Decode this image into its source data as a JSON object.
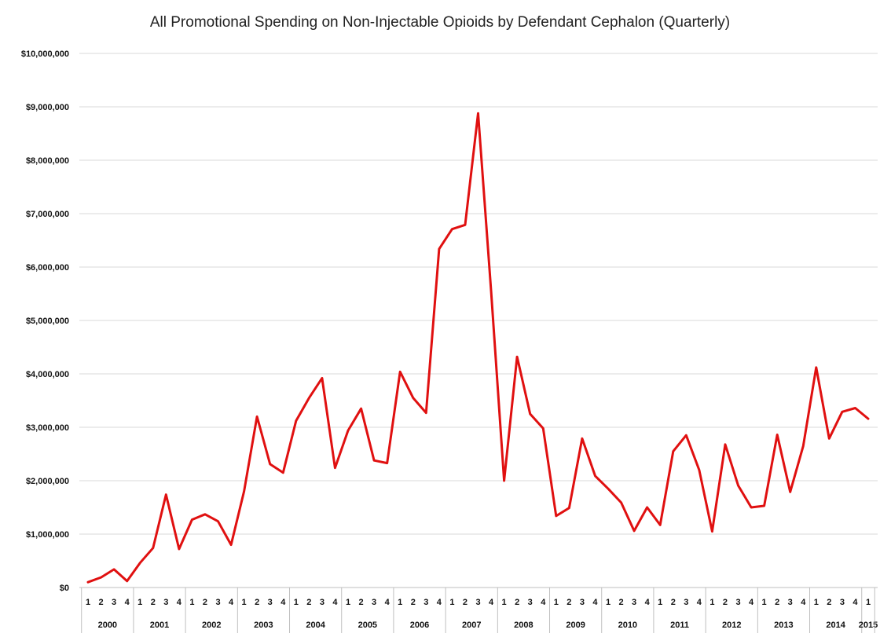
{
  "chart_data": {
    "type": "line",
    "title": "All Promotional Spending on Non-Injectable Opioids by Defendant Cephalon (Quarterly)",
    "xlabel": "",
    "ylabel": "",
    "ylim": [
      0,
      10000000
    ],
    "y_ticks": [
      0,
      1000000,
      2000000,
      3000000,
      4000000,
      5000000,
      6000000,
      7000000,
      8000000,
      9000000,
      10000000
    ],
    "y_tick_labels": [
      "$0",
      "$1,000,000",
      "$2,000,000",
      "$3,000,000",
      "$4,000,000",
      "$5,000,000",
      "$6,000,000",
      "$7,000,000",
      "$8,000,000",
      "$9,000,000",
      "$10,000,000"
    ],
    "grid": true,
    "legend": "none",
    "line_color": "#e01010",
    "years": [
      "2000",
      "2001",
      "2002",
      "2003",
      "2004",
      "2005",
      "2006",
      "2007",
      "2008",
      "2009",
      "2010",
      "2011",
      "2012",
      "2013",
      "2014",
      "2015"
    ],
    "quarters": [
      "1",
      "2",
      "3",
      "4"
    ],
    "x": [
      "2000 Q1",
      "2000 Q2",
      "2000 Q3",
      "2000 Q4",
      "2001 Q1",
      "2001 Q2",
      "2001 Q3",
      "2001 Q4",
      "2002 Q1",
      "2002 Q2",
      "2002 Q3",
      "2002 Q4",
      "2003 Q1",
      "2003 Q2",
      "2003 Q3",
      "2003 Q4",
      "2004 Q1",
      "2004 Q2",
      "2004 Q3",
      "2004 Q4",
      "2005 Q1",
      "2005 Q2",
      "2005 Q3",
      "2005 Q4",
      "2006 Q1",
      "2006 Q2",
      "2006 Q3",
      "2006 Q4",
      "2007 Q1",
      "2007 Q2",
      "2007 Q3",
      "2007 Q4",
      "2008 Q1",
      "2008 Q2",
      "2008 Q3",
      "2008 Q4",
      "2009 Q1",
      "2009 Q2",
      "2009 Q3",
      "2009 Q4",
      "2010 Q1",
      "2010 Q2",
      "2010 Q3",
      "2010 Q4",
      "2011 Q1",
      "2011 Q2",
      "2011 Q3",
      "2011 Q4",
      "2012 Q1",
      "2012 Q2",
      "2012 Q3",
      "2012 Q4",
      "2013 Q1",
      "2013 Q2",
      "2013 Q3",
      "2013 Q4",
      "2014 Q1",
      "2014 Q2",
      "2014 Q3",
      "2014 Q4",
      "2015 Q1"
    ],
    "values": [
      100000,
      190000,
      340000,
      120000,
      460000,
      740000,
      1740000,
      720000,
      1270000,
      1370000,
      1240000,
      800000,
      1800000,
      3200000,
      2310000,
      2150000,
      3120000,
      3550000,
      3920000,
      2240000,
      2940000,
      3350000,
      2380000,
      2330000,
      4040000,
      3550000,
      3270000,
      6340000,
      6710000,
      6790000,
      8880000,
      5540000,
      2000000,
      4320000,
      3250000,
      2980000,
      1340000,
      1490000,
      2790000,
      2090000,
      1850000,
      1590000,
      1060000,
      1500000,
      1170000,
      2550000,
      2850000,
      2200000,
      1050000,
      2680000,
      1910000,
      1500000,
      1530000,
      2860000,
      1790000,
      2650000,
      4120000,
      2790000,
      3290000,
      3360000,
      3160000
    ]
  }
}
